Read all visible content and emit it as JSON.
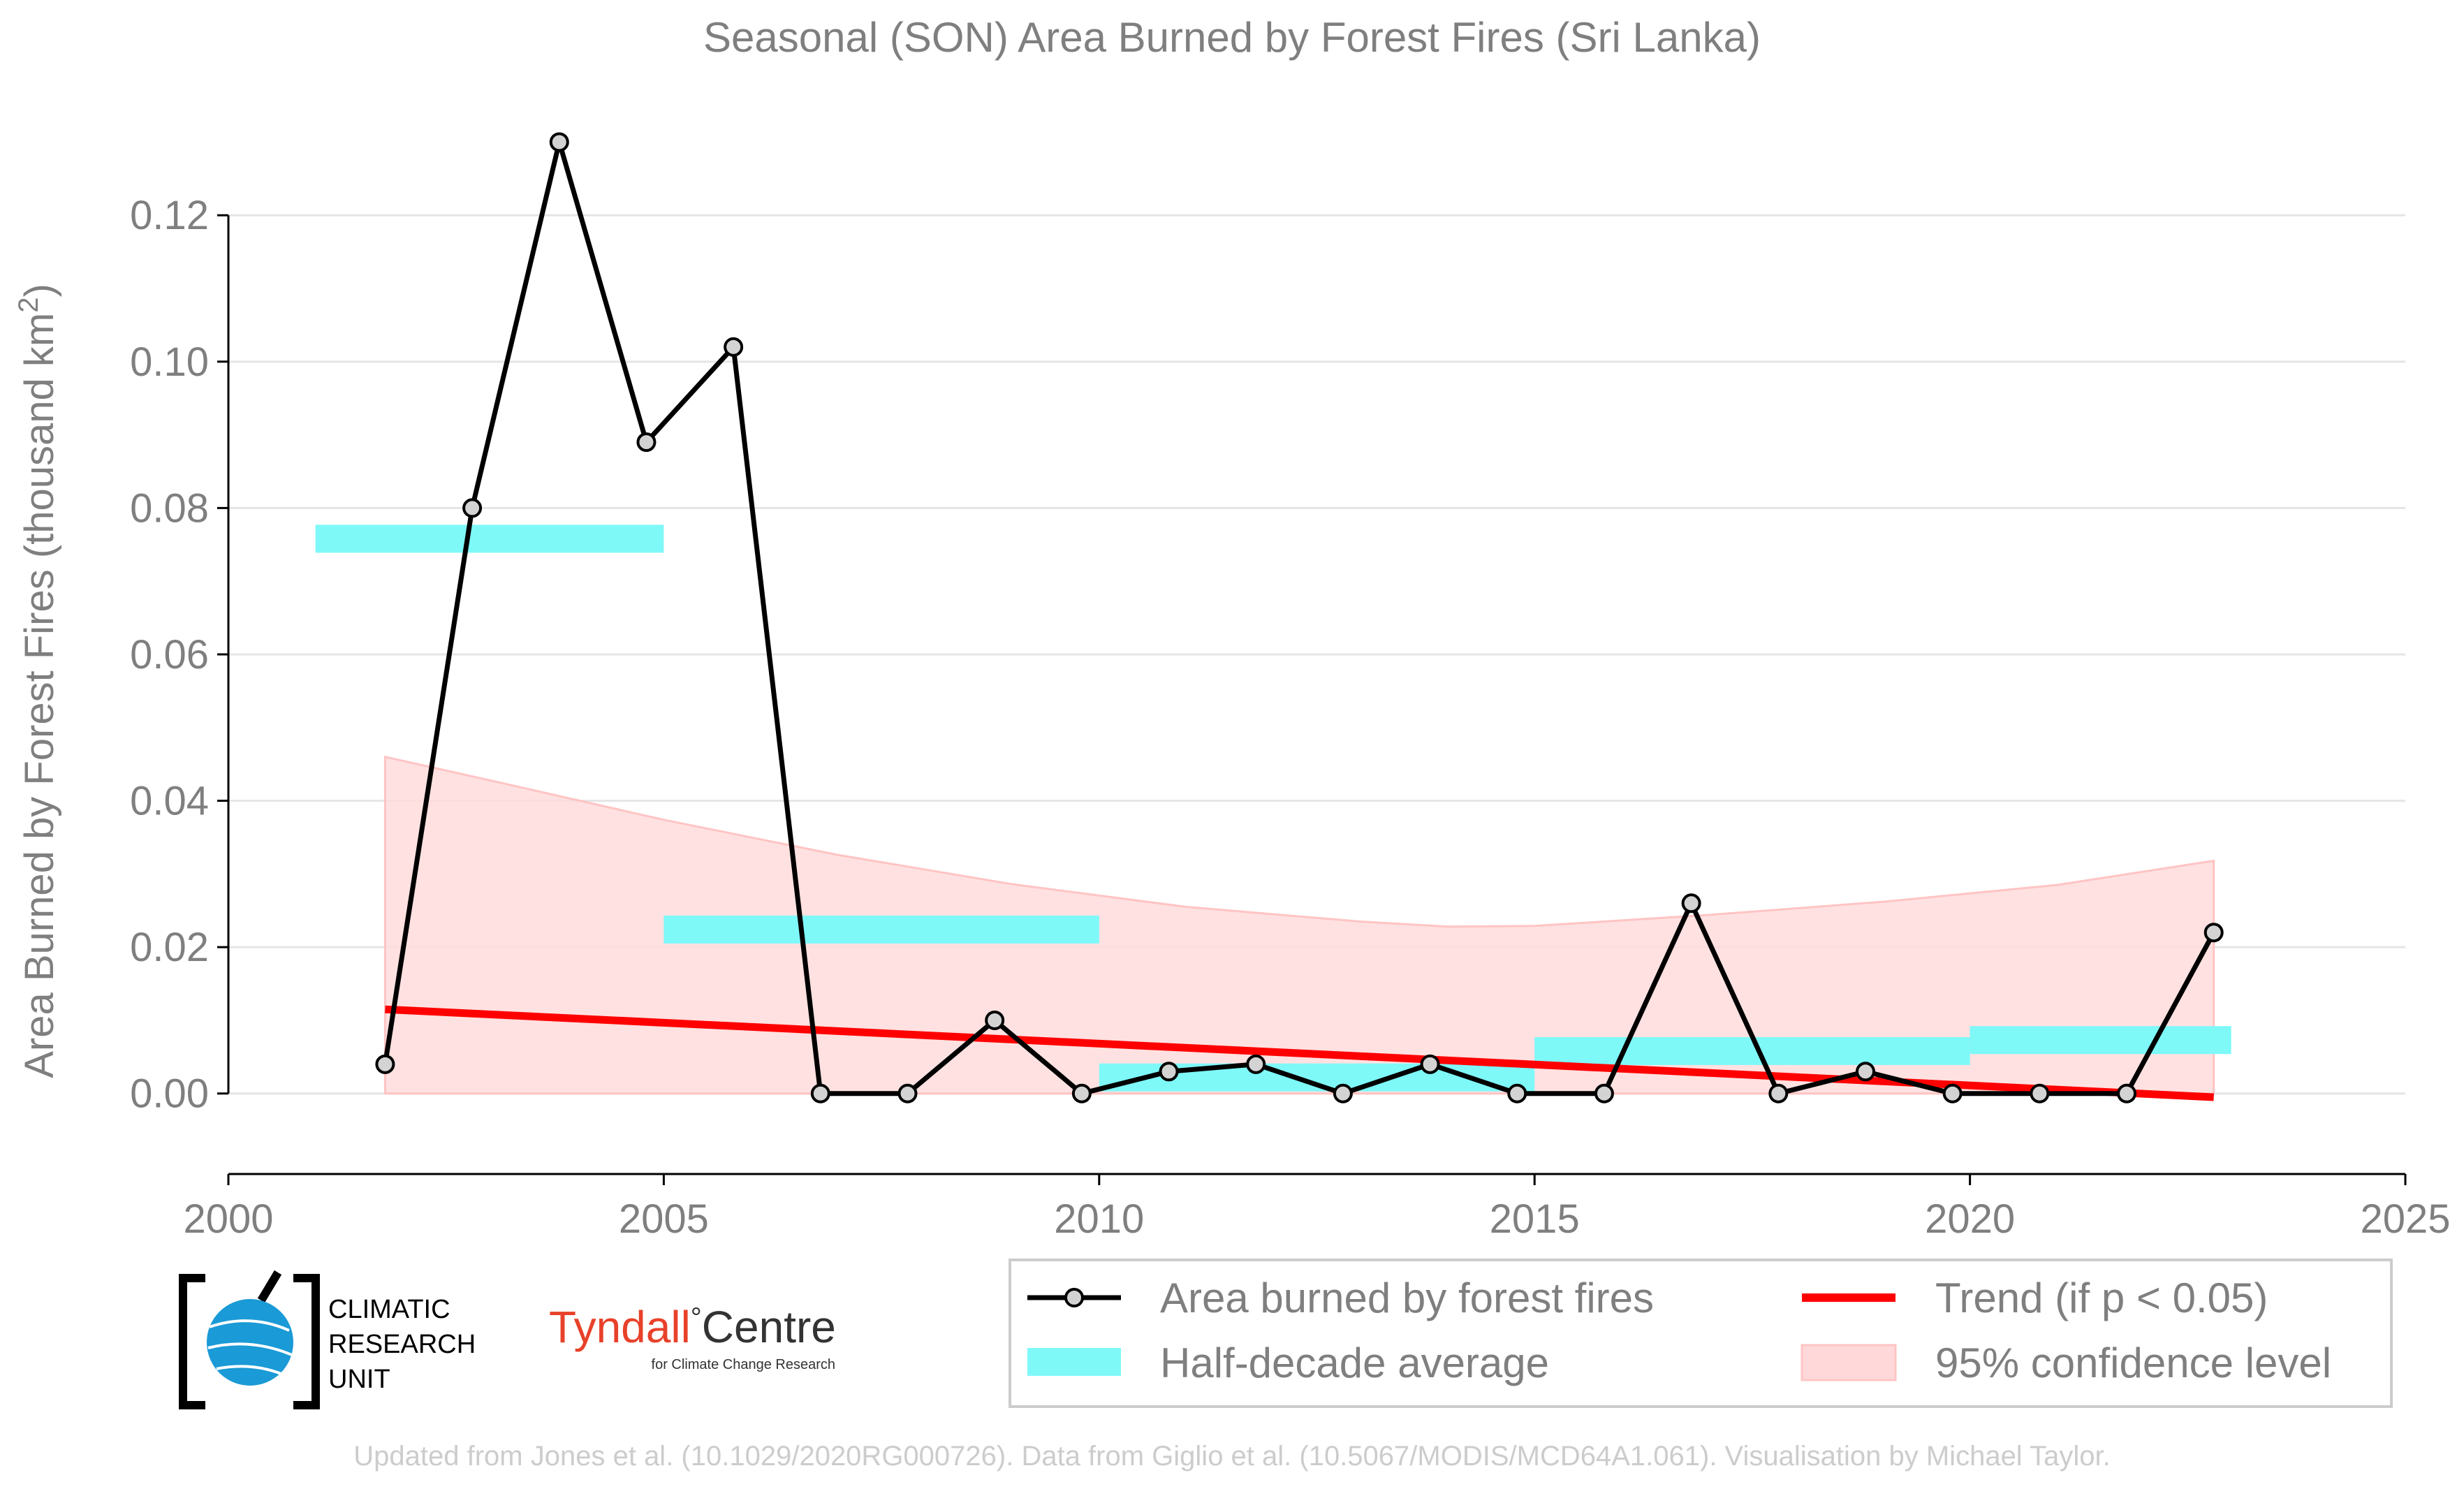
{
  "chart_data": {
    "type": "line",
    "title": "Seasonal (SON) Area Burned by Forest Fires (Sri Lanka)",
    "ylabel_main": "Area Burned by Forest Fires (thousand km",
    "ylabel_sup": "2",
    "ylabel_close": ")",
    "xlim": [
      2000,
      2025
    ],
    "ylim": [
      -0.011,
      0.133
    ],
    "xticks": [
      2000,
      2005,
      2010,
      2015,
      2020,
      2025
    ],
    "xtick_labels": [
      "2000",
      "2005",
      "2010",
      "2015",
      "2020",
      "2025"
    ],
    "yticks": [
      0.0,
      0.02,
      0.04,
      0.06,
      0.08,
      0.1,
      0.12
    ],
    "ytick_labels": [
      "0.00",
      "0.02",
      "0.04",
      "0.06",
      "0.08",
      "0.10",
      "0.12"
    ],
    "grid": "horizontal",
    "series": [
      {
        "name": "Area burned by forest fires",
        "color": "#000000",
        "marker_fill": "#d3d3d3",
        "x": [
          2001.8,
          2002.8,
          2003.8,
          2004.8,
          2005.8,
          2006.8,
          2007.8,
          2008.8,
          2009.8,
          2010.8,
          2011.8,
          2012.8,
          2013.8,
          2014.8,
          2015.8,
          2016.8,
          2017.8,
          2018.8,
          2019.8,
          2020.8,
          2021.8,
          2022.8
        ],
        "y": [
          0.004,
          0.08,
          0.13,
          0.089,
          0.102,
          0.0,
          0.0,
          0.01,
          0.0,
          0.003,
          0.004,
          0.0,
          0.004,
          0.0,
          0.0,
          0.026,
          0.0,
          0.003,
          0.0,
          0.0,
          0.0,
          0.022
        ]
      }
    ],
    "half_decade_average": {
      "name": "Half-decade average",
      "color": "#7ff8f8",
      "segments": [
        {
          "x0": 2001.0,
          "x1": 2005.0,
          "y": 0.0758
        },
        {
          "x0": 2005.0,
          "x1": 2010.0,
          "y": 0.0224
        },
        {
          "x0": 2010.0,
          "x1": 2015.0,
          "y": 0.0022
        },
        {
          "x0": 2015.0,
          "x1": 2020.0,
          "y": 0.0058
        },
        {
          "x0": 2020.0,
          "x1": 2023.0,
          "y": 0.0073
        }
      ]
    },
    "trend": {
      "name": "Trend (if p < 0.05)",
      "color": "#ff0000",
      "x": [
        2001.8,
        2022.8
      ],
      "y": [
        0.0115,
        -0.0005
      ]
    },
    "confidence": {
      "name": "95% confidence level",
      "color": "#ffd9d9",
      "x": [
        2001.8,
        2003,
        2005,
        2007,
        2009,
        2011,
        2013,
        2014,
        2015,
        2017,
        2019,
        2021,
        2022.8
      ],
      "upper": [
        0.046,
        0.0428,
        0.0374,
        0.0326,
        0.0286,
        0.0255,
        0.0235,
        0.0228,
        0.0229,
        0.0244,
        0.0262,
        0.0285,
        0.0318
      ],
      "lower": [
        0,
        0,
        0,
        0,
        0,
        0,
        0,
        0,
        0,
        0,
        0,
        0,
        0
      ]
    },
    "legend": {
      "position": "bottom-right",
      "entries": [
        "Area burned by forest fires",
        "Trend (if p < 0.05)",
        "Half-decade average",
        "95% confidence level"
      ]
    }
  },
  "logos": {
    "cru_line1": "CLIMATIC",
    "cru_line2": "RESEARCH",
    "cru_line3": "UNIT",
    "tyndall_name": "Tyndall",
    "tyndall_degree": "°",
    "tyndall_centre": "Centre",
    "tyndall_sub": "for Climate Change Research"
  },
  "footer": "Updated from Jones et al. (10.1029/2020RG000726). Data from Giglio et al. (10.5067/MODIS/MCD64A1.061). Visualisation by Michael Taylor."
}
